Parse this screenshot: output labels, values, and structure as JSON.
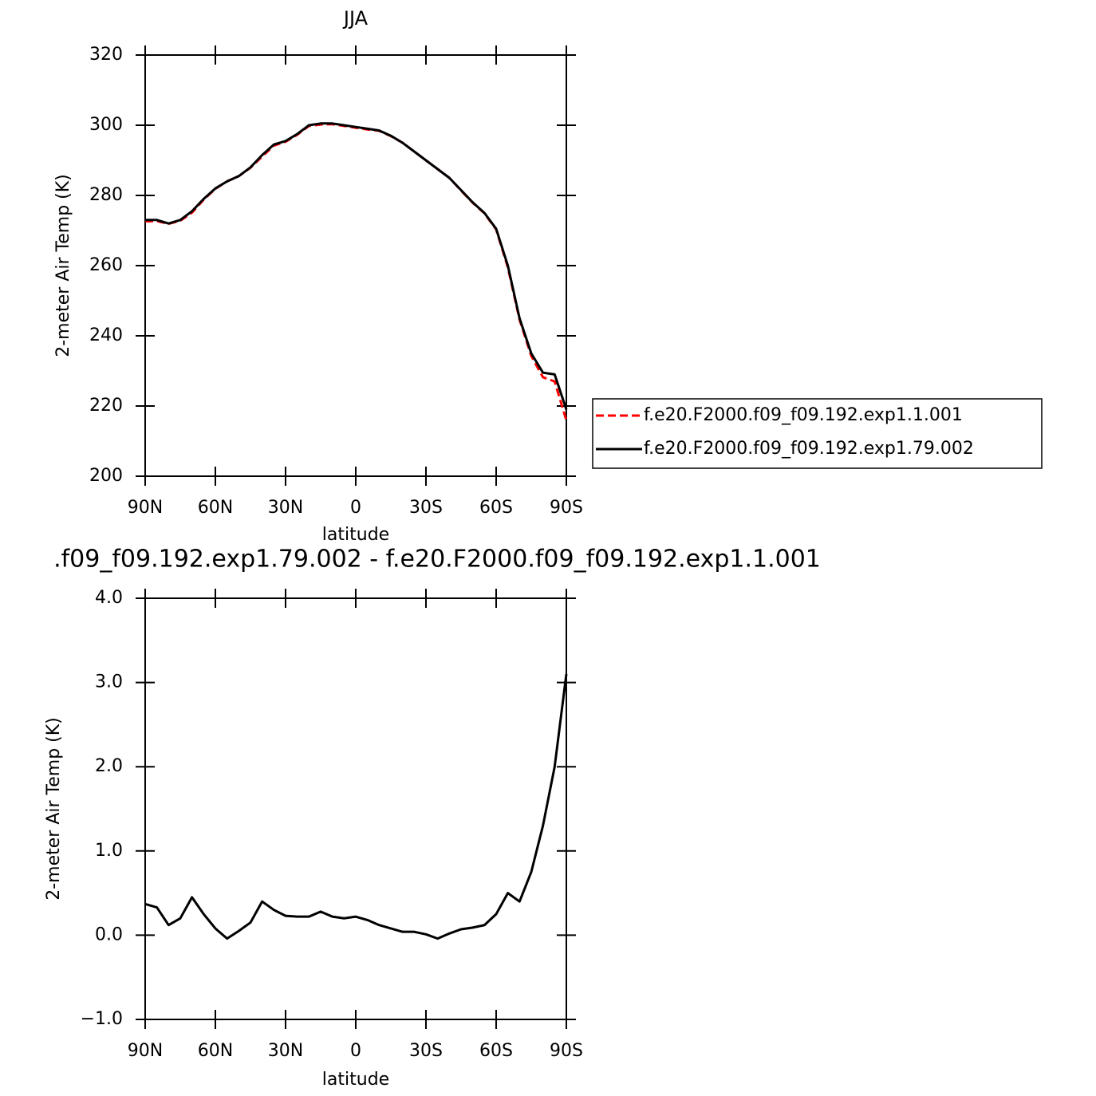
{
  "chart_data": [
    {
      "type": "line",
      "title": "JJA",
      "xlabel": "latitude",
      "ylabel": "2-meter Air Temp (K)",
      "x": [
        90,
        85,
        80,
        75,
        70,
        65,
        60,
        55,
        50,
        45,
        40,
        35,
        30,
        25,
        20,
        15,
        10,
        5,
        0,
        -5,
        -10,
        -15,
        -20,
        -25,
        -30,
        -35,
        -40,
        -45,
        -50,
        -55,
        -60,
        -65,
        -70,
        -75,
        -80,
        -85,
        -90
      ],
      "series": [
        {
          "name": "f.e20.F2000.f09_f09.192.exp1.1.001",
          "color": "#ff0000",
          "dash": true,
          "values": [
            272.6,
            272.7,
            271.9,
            272.8,
            275.1,
            278.8,
            281.9,
            284.0,
            285.5,
            287.9,
            291.1,
            294.2,
            295.3,
            297.3,
            299.8,
            300.2,
            300.3,
            299.8,
            299.3,
            298.8,
            298.4,
            296.9,
            295.0,
            292.5,
            290.0,
            287.5,
            285.0,
            281.4,
            277.9,
            274.9,
            270.3,
            259.5,
            244.6,
            234.3,
            228.2,
            227.0,
            215.9
          ]
        },
        {
          "name": "f.e20.F2000.f09_f09.192.exp1.79.002",
          "color": "#000000",
          "dash": false,
          "values": [
            273,
            273,
            272,
            273,
            275.5,
            279,
            282,
            284,
            285.5,
            288,
            291.5,
            294.5,
            295.5,
            297.5,
            300,
            300.5,
            300.5,
            300,
            299.5,
            299,
            298.5,
            297,
            295,
            292.5,
            290,
            287.5,
            285,
            281.5,
            278,
            275,
            270.5,
            260,
            245,
            235,
            229.5,
            229,
            219
          ]
        }
      ],
      "xlim": [
        90,
        -90
      ],
      "xticks": [
        {
          "value": 90,
          "label": "90N"
        },
        {
          "value": 60,
          "label": "60N"
        },
        {
          "value": 30,
          "label": "30N"
        },
        0,
        {
          "value": -30,
          "label": "30S"
        },
        {
          "value": -60,
          "label": "60S"
        },
        {
          "value": -90,
          "label": "90S"
        }
      ],
      "ylim": [
        200,
        320
      ],
      "yticks": [
        200,
        220,
        240,
        260,
        280,
        300,
        320
      ],
      "legend": "right"
    },
    {
      "type": "line",
      "title": ".f09_f09.192.exp1.79.002 - f.e20.F2000.f09_f09.192.exp1.1.001",
      "xlabel": "latitude",
      "ylabel": "2-meter Air Temp (K)",
      "x": [
        90,
        85,
        80,
        75,
        70,
        65,
        60,
        55,
        50,
        45,
        40,
        35,
        30,
        25,
        20,
        15,
        10,
        5,
        0,
        -5,
        -10,
        -15,
        -20,
        -25,
        -30,
        -35,
        -40,
        -45,
        -50,
        -55,
        -60,
        -65,
        -70,
        -75,
        -80,
        -85,
        -90
      ],
      "series": [
        {
          "color": "#000000",
          "dash": false,
          "values": [
            0.37,
            0.33,
            0.12,
            0.2,
            0.45,
            0.25,
            0.08,
            -0.04,
            0.05,
            0.15,
            0.4,
            0.3,
            0.23,
            0.22,
            0.22,
            0.28,
            0.22,
            0.2,
            0.22,
            0.18,
            0.12,
            0.08,
            0.04,
            0.04,
            0.01,
            -0.04,
            0.02,
            0.07,
            0.09,
            0.12,
            0.25,
            0.5,
            0.4,
            0.75,
            1.3,
            2.0,
            3.1
          ]
        }
      ],
      "xlim": [
        90,
        -90
      ],
      "xticks": [
        {
          "value": 90,
          "label": "90N"
        },
        {
          "value": 60,
          "label": "60N"
        },
        {
          "value": 30,
          "label": "30N"
        },
        0,
        {
          "value": -30,
          "label": "30S"
        },
        {
          "value": -60,
          "label": "60S"
        },
        {
          "value": -90,
          "label": "90S"
        }
      ],
      "ylim": [
        -1,
        4
      ],
      "yticks": [
        {
          "value": -1,
          "label": "−1.0"
        },
        {
          "value": 0,
          "label": "0.0"
        },
        {
          "value": 1,
          "label": "1.0"
        },
        {
          "value": 2,
          "label": "2.0"
        },
        {
          "value": 3,
          "label": "3.0"
        },
        {
          "value": 4,
          "label": "4.0"
        }
      ]
    }
  ]
}
